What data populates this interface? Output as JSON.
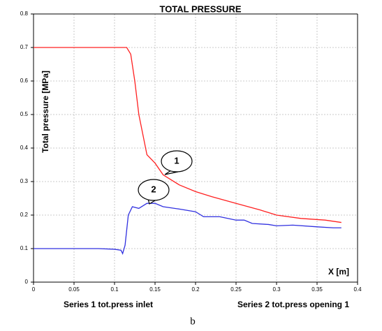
{
  "chart_data": {
    "type": "line",
    "title": "TOTAL PRESSURE",
    "y_label": "Total pressure [MPa]",
    "x_label": "X [m]",
    "caption": "b",
    "xlim": [
      0,
      0.4
    ],
    "xticks": [
      0,
      0.05,
      0.1,
      0.15,
      0.2,
      0.25,
      0.3,
      0.35,
      0.4
    ],
    "ylim": [
      0,
      0.8
    ],
    "yticks": [
      0,
      0.1,
      0.2,
      0.3,
      0.4,
      0.5,
      0.6,
      0.7,
      0.8
    ],
    "grid": true,
    "series": [
      {
        "name": "Series 1 tot.press inlet",
        "color": "#ff2020",
        "x": [
          0,
          0.05,
          0.1,
          0.115,
          0.12,
          0.125,
          0.13,
          0.135,
          0.14,
          0.15,
          0.16,
          0.18,
          0.2,
          0.22,
          0.25,
          0.28,
          0.3,
          0.33,
          0.36,
          0.38
        ],
        "values": [
          0.7,
          0.7,
          0.7,
          0.7,
          0.68,
          0.6,
          0.5,
          0.44,
          0.38,
          0.355,
          0.32,
          0.29,
          0.27,
          0.255,
          0.235,
          0.215,
          0.2,
          0.19,
          0.185,
          0.178
        ]
      },
      {
        "name": "Series 2 tot.press opening 1",
        "color": "#3030e0",
        "x": [
          0,
          0.05,
          0.06,
          0.08,
          0.1,
          0.108,
          0.11,
          0.113,
          0.117,
          0.122,
          0.13,
          0.14,
          0.15,
          0.16,
          0.18,
          0.2,
          0.21,
          0.23,
          0.25,
          0.26,
          0.27,
          0.29,
          0.3,
          0.32,
          0.35,
          0.37,
          0.38
        ],
        "values": [
          0.1,
          0.1,
          0.1,
          0.1,
          0.098,
          0.095,
          0.085,
          0.11,
          0.2,
          0.225,
          0.22,
          0.235,
          0.235,
          0.225,
          0.218,
          0.21,
          0.195,
          0.195,
          0.185,
          0.185,
          0.175,
          0.172,
          0.168,
          0.17,
          0.165,
          0.162,
          0.162
        ]
      }
    ],
    "annotations": [
      "1",
      "2"
    ]
  }
}
